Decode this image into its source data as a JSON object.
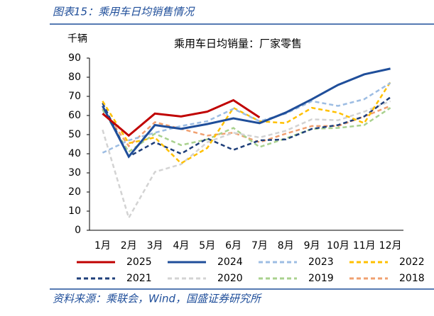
{
  "header": "图表15：乘用车日均销售情况",
  "footer": "资料来源：乘联会，Wind，国盛证券研究所",
  "chart_data": {
    "type": "line",
    "title": "乘用车日均销量：厂家零售",
    "y_label": "千辆",
    "categories": [
      "1月",
      "2月",
      "3月",
      "4月",
      "5月",
      "6月",
      "7月",
      "8月",
      "9月",
      "10月",
      "11月",
      "12月"
    ],
    "ylim": [
      0,
      90
    ],
    "yticks": [
      0,
      10,
      20,
      30,
      40,
      50,
      60,
      70,
      80,
      90
    ],
    "series": [
      {
        "name": "2025",
        "color": "#c00000",
        "dashed": false,
        "values": [
          61,
          49.5,
          61,
          59.5,
          62,
          68,
          59,
          null,
          null,
          null,
          null,
          null
        ]
      },
      {
        "name": "2024",
        "color": "#1f4e9a",
        "dashed": false,
        "values": [
          65,
          38.5,
          55,
          53,
          55.5,
          58.5,
          56,
          61.5,
          68.5,
          76,
          81.5,
          84.5
        ]
      },
      {
        "name": "2023",
        "color": "#9dbde3",
        "dashed": true,
        "values": [
          40.5,
          47,
          51,
          54.5,
          57,
          63.5,
          57,
          61,
          67.5,
          65,
          68.5,
          77
        ]
      },
      {
        "name": "2022",
        "color": "#ffc000",
        "dashed": true,
        "values": [
          67.5,
          45.5,
          48.5,
          35,
          43,
          64,
          57,
          56,
          64,
          61.5,
          56,
          77.5
        ]
      },
      {
        "name": "2021",
        "color": "#1f3f7a",
        "dashed": true,
        "values": [
          66.5,
          38.5,
          46,
          40,
          48,
          42,
          47,
          47.5,
          53,
          55,
          59.5,
          69.5
        ]
      },
      {
        "name": "2020",
        "color": "#d3d3d3",
        "dashed": true,
        "values": [
          52.5,
          6.5,
          30.5,
          34.5,
          46,
          51,
          48.5,
          52,
          58,
          57.5,
          62,
          67.5
        ]
      },
      {
        "name": "2019",
        "color": "#a9d18e",
        "dashed": true,
        "values": [
          63,
          41,
          50.5,
          44.5,
          47.5,
          53.5,
          43.5,
          48,
          53,
          53.5,
          55,
          64
        ]
      },
      {
        "name": "2018",
        "color": "#f0a070",
        "dashed": true,
        "values": [
          63.5,
          44,
          56.5,
          53,
          49.5,
          51,
          46,
          50.5,
          54.5,
          54.5,
          59.5,
          65
        ]
      }
    ]
  }
}
